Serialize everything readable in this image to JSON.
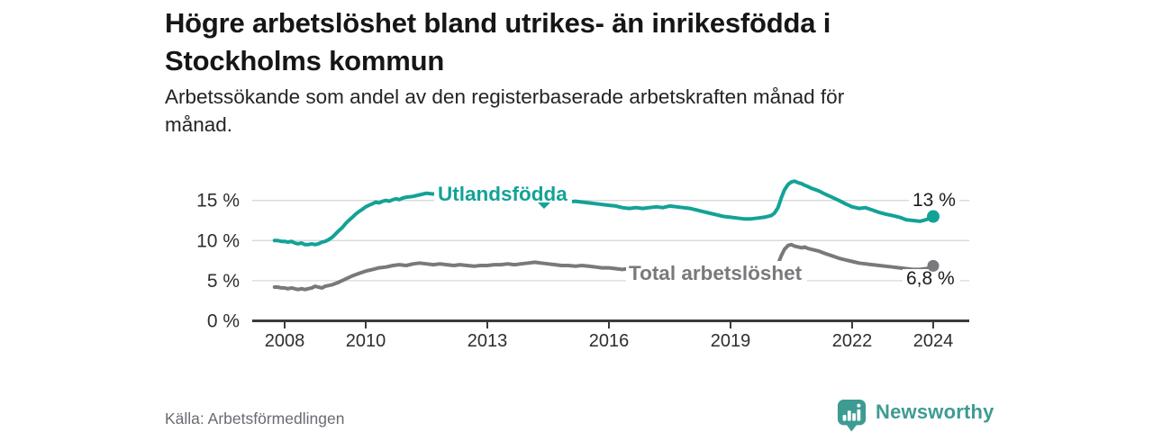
{
  "header": {
    "title_lines": [
      "Högre arbetslöshet bland utrikes- än inrikesfödda i",
      "Stockholms kommun"
    ],
    "subtitle_lines": [
      "Arbetssökande som andel av den registerbaserade arbetskraften månad för",
      "månad."
    ]
  },
  "chart_data": {
    "type": "line",
    "title": "Högre arbetslöshet bland utrikes- än inrikesfödda i Stockholms kommun",
    "subtitle": "Arbetssökande som andel av den registerbaserade arbetskraften månad för månad.",
    "unit": "%",
    "grid": "horizontal",
    "legend_position": "inline-labels",
    "xlim": [
      2007.6,
      2024.9
    ],
    "ylim": [
      0,
      18
    ],
    "x_ticks": [
      {
        "value": 2008,
        "label": "2008"
      },
      {
        "value": 2010,
        "label": "2010"
      },
      {
        "value": 2013,
        "label": "2013"
      },
      {
        "value": 2016,
        "label": "2016"
      },
      {
        "value": 2019,
        "label": "2019"
      },
      {
        "value": 2022,
        "label": "2022"
      },
      {
        "value": 2024,
        "label": "2024"
      }
    ],
    "y_ticks": [
      {
        "value": 0,
        "label": "0 %"
      },
      {
        "value": 5,
        "label": "5 %"
      },
      {
        "value": 10,
        "label": "10 %"
      },
      {
        "value": 15,
        "label": "15 %"
      }
    ],
    "series": [
      {
        "name": "Utlandsfödda",
        "color": "#13a297",
        "end_label": "13 %",
        "end_value": 13.0,
        "points": [
          [
            2007.75,
            10.0
          ],
          [
            2007.83,
            10.0
          ],
          [
            2007.92,
            9.9
          ],
          [
            2008.0,
            9.9
          ],
          [
            2008.08,
            9.8
          ],
          [
            2008.17,
            9.9
          ],
          [
            2008.25,
            9.7
          ],
          [
            2008.33,
            9.6
          ],
          [
            2008.42,
            9.7
          ],
          [
            2008.5,
            9.5
          ],
          [
            2008.58,
            9.5
          ],
          [
            2008.67,
            9.6
          ],
          [
            2008.75,
            9.5
          ],
          [
            2008.83,
            9.6
          ],
          [
            2008.92,
            9.8
          ],
          [
            2009.0,
            9.9
          ],
          [
            2009.08,
            10.1
          ],
          [
            2009.17,
            10.4
          ],
          [
            2009.25,
            10.8
          ],
          [
            2009.33,
            11.2
          ],
          [
            2009.42,
            11.6
          ],
          [
            2009.5,
            12.1
          ],
          [
            2009.58,
            12.5
          ],
          [
            2009.67,
            12.9
          ],
          [
            2009.75,
            13.3
          ],
          [
            2009.83,
            13.6
          ],
          [
            2009.92,
            13.9
          ],
          [
            2010.0,
            14.2
          ],
          [
            2010.08,
            14.4
          ],
          [
            2010.17,
            14.6
          ],
          [
            2010.25,
            14.8
          ],
          [
            2010.33,
            14.7
          ],
          [
            2010.42,
            14.9
          ],
          [
            2010.5,
            15.0
          ],
          [
            2010.58,
            14.9
          ],
          [
            2010.67,
            15.1
          ],
          [
            2010.75,
            15.2
          ],
          [
            2010.83,
            15.1
          ],
          [
            2010.92,
            15.3
          ],
          [
            2011.0,
            15.4
          ],
          [
            2011.17,
            15.5
          ],
          [
            2011.33,
            15.7
          ],
          [
            2011.5,
            15.9
          ],
          [
            2011.67,
            15.8
          ],
          [
            2011.83,
            16.0
          ],
          [
            2012.0,
            16.1
          ],
          [
            2012.17,
            15.9
          ],
          [
            2012.33,
            16.0
          ],
          [
            2012.5,
            15.8
          ],
          [
            2012.67,
            15.7
          ],
          [
            2012.83,
            15.6
          ],
          [
            2013.0,
            15.5
          ],
          [
            2013.25,
            15.4
          ],
          [
            2013.5,
            15.3
          ],
          [
            2013.75,
            15.2
          ],
          [
            2014.0,
            15.1
          ],
          [
            2014.25,
            15.0
          ],
          [
            2014.5,
            14.9
          ],
          [
            2014.75,
            14.9
          ],
          [
            2015.0,
            14.8
          ],
          [
            2015.17,
            14.9
          ],
          [
            2015.33,
            14.8
          ],
          [
            2015.5,
            14.7
          ],
          [
            2015.67,
            14.6
          ],
          [
            2015.83,
            14.5
          ],
          [
            2016.0,
            14.4
          ],
          [
            2016.17,
            14.3
          ],
          [
            2016.33,
            14.1
          ],
          [
            2016.5,
            14.0
          ],
          [
            2016.67,
            14.1
          ],
          [
            2016.83,
            14.0
          ],
          [
            2017.0,
            14.1
          ],
          [
            2017.17,
            14.2
          ],
          [
            2017.33,
            14.1
          ],
          [
            2017.5,
            14.3
          ],
          [
            2017.67,
            14.2
          ],
          [
            2017.83,
            14.1
          ],
          [
            2018.0,
            14.0
          ],
          [
            2018.17,
            13.8
          ],
          [
            2018.33,
            13.6
          ],
          [
            2018.5,
            13.4
          ],
          [
            2018.67,
            13.2
          ],
          [
            2018.83,
            13.0
          ],
          [
            2019.0,
            12.9
          ],
          [
            2019.17,
            12.8
          ],
          [
            2019.33,
            12.7
          ],
          [
            2019.5,
            12.7
          ],
          [
            2019.67,
            12.8
          ],
          [
            2019.83,
            12.9
          ],
          [
            2020.0,
            13.1
          ],
          [
            2020.08,
            13.4
          ],
          [
            2020.17,
            14.1
          ],
          [
            2020.25,
            15.3
          ],
          [
            2020.33,
            16.3
          ],
          [
            2020.42,
            17.0
          ],
          [
            2020.5,
            17.3
          ],
          [
            2020.58,
            17.4
          ],
          [
            2020.67,
            17.2
          ],
          [
            2020.75,
            17.1
          ],
          [
            2020.83,
            16.9
          ],
          [
            2020.92,
            16.7
          ],
          [
            2021.0,
            16.5
          ],
          [
            2021.17,
            16.2
          ],
          [
            2021.33,
            15.8
          ],
          [
            2021.5,
            15.4
          ],
          [
            2021.67,
            15.0
          ],
          [
            2021.83,
            14.6
          ],
          [
            2022.0,
            14.2
          ],
          [
            2022.17,
            14.0
          ],
          [
            2022.33,
            14.1
          ],
          [
            2022.5,
            13.8
          ],
          [
            2022.67,
            13.5
          ],
          [
            2022.83,
            13.3
          ],
          [
            2023.0,
            13.1
          ],
          [
            2023.17,
            12.9
          ],
          [
            2023.33,
            12.6
          ],
          [
            2023.5,
            12.5
          ],
          [
            2023.67,
            12.4
          ],
          [
            2023.83,
            12.6
          ],
          [
            2023.92,
            12.8
          ],
          [
            2024.0,
            13.0
          ]
        ]
      },
      {
        "name": "Total arbetslöshet",
        "color": "#78787d",
        "end_label": "6,8 %",
        "end_value": 6.8,
        "points": [
          [
            2007.75,
            4.2
          ],
          [
            2007.83,
            4.2
          ],
          [
            2007.92,
            4.1
          ],
          [
            2008.0,
            4.1
          ],
          [
            2008.08,
            4.0
          ],
          [
            2008.17,
            4.1
          ],
          [
            2008.25,
            4.0
          ],
          [
            2008.33,
            3.9
          ],
          [
            2008.42,
            4.0
          ],
          [
            2008.5,
            3.9
          ],
          [
            2008.58,
            4.0
          ],
          [
            2008.67,
            4.1
          ],
          [
            2008.75,
            4.3
          ],
          [
            2008.83,
            4.2
          ],
          [
            2008.92,
            4.1
          ],
          [
            2009.0,
            4.3
          ],
          [
            2009.17,
            4.5
          ],
          [
            2009.33,
            4.8
          ],
          [
            2009.5,
            5.2
          ],
          [
            2009.67,
            5.6
          ],
          [
            2009.83,
            5.9
          ],
          [
            2010.0,
            6.2
          ],
          [
            2010.17,
            6.4
          ],
          [
            2010.33,
            6.6
          ],
          [
            2010.5,
            6.7
          ],
          [
            2010.67,
            6.9
          ],
          [
            2010.83,
            7.0
          ],
          [
            2011.0,
            6.9
          ],
          [
            2011.17,
            7.1
          ],
          [
            2011.33,
            7.2
          ],
          [
            2011.5,
            7.1
          ],
          [
            2011.67,
            7.0
          ],
          [
            2011.83,
            7.1
          ],
          [
            2012.0,
            7.0
          ],
          [
            2012.17,
            6.9
          ],
          [
            2012.33,
            7.0
          ],
          [
            2012.5,
            6.9
          ],
          [
            2012.67,
            6.8
          ],
          [
            2012.83,
            6.9
          ],
          [
            2013.0,
            6.9
          ],
          [
            2013.17,
            7.0
          ],
          [
            2013.33,
            7.0
          ],
          [
            2013.5,
            7.1
          ],
          [
            2013.67,
            7.0
          ],
          [
            2013.83,
            7.1
          ],
          [
            2014.0,
            7.2
          ],
          [
            2014.17,
            7.3
          ],
          [
            2014.33,
            7.2
          ],
          [
            2014.5,
            7.1
          ],
          [
            2014.67,
            7.0
          ],
          [
            2014.83,
            6.9
          ],
          [
            2015.0,
            6.9
          ],
          [
            2015.17,
            6.8
          ],
          [
            2015.33,
            6.9
          ],
          [
            2015.5,
            6.8
          ],
          [
            2015.67,
            6.7
          ],
          [
            2015.83,
            6.6
          ],
          [
            2016.0,
            6.6
          ],
          [
            2016.17,
            6.5
          ],
          [
            2016.33,
            6.4
          ],
          [
            2016.5,
            6.5
          ],
          [
            2016.67,
            6.4
          ],
          [
            2016.83,
            6.3
          ],
          [
            2017.0,
            6.3
          ],
          [
            2017.25,
            6.2
          ],
          [
            2017.5,
            6.2
          ],
          [
            2017.75,
            6.1
          ],
          [
            2018.0,
            6.1
          ],
          [
            2018.25,
            6.0
          ],
          [
            2018.5,
            6.0
          ],
          [
            2018.75,
            5.9
          ],
          [
            2019.0,
            5.9
          ],
          [
            2019.25,
            5.9
          ],
          [
            2019.5,
            5.9
          ],
          [
            2019.75,
            6.0
          ],
          [
            2020.0,
            6.2
          ],
          [
            2020.08,
            6.5
          ],
          [
            2020.17,
            7.1
          ],
          [
            2020.25,
            8.1
          ],
          [
            2020.33,
            8.9
          ],
          [
            2020.42,
            9.4
          ],
          [
            2020.5,
            9.5
          ],
          [
            2020.58,
            9.3
          ],
          [
            2020.67,
            9.2
          ],
          [
            2020.75,
            9.1
          ],
          [
            2020.83,
            9.2
          ],
          [
            2020.92,
            9.0
          ],
          [
            2021.0,
            8.9
          ],
          [
            2021.17,
            8.7
          ],
          [
            2021.33,
            8.4
          ],
          [
            2021.5,
            8.1
          ],
          [
            2021.67,
            7.8
          ],
          [
            2021.83,
            7.6
          ],
          [
            2022.0,
            7.4
          ],
          [
            2022.17,
            7.2
          ],
          [
            2022.33,
            7.1
          ],
          [
            2022.5,
            7.0
          ],
          [
            2022.67,
            6.9
          ],
          [
            2022.83,
            6.8
          ],
          [
            2023.0,
            6.7
          ],
          [
            2023.17,
            6.6
          ],
          [
            2023.33,
            6.5
          ],
          [
            2023.5,
            6.4
          ],
          [
            2023.67,
            6.4
          ],
          [
            2023.83,
            6.5
          ],
          [
            2023.92,
            6.6
          ],
          [
            2024.0,
            6.85
          ]
        ]
      }
    ]
  },
  "footer": {
    "source": "Källa: Arbetsförmedlingen",
    "brand": "Newsworthy"
  },
  "colors": {
    "accent": "#13a297",
    "secondary": "#78787d",
    "brand": "#3e9b93",
    "axis": "#3b3b3b",
    "grid": "#d8d8d8",
    "text": "#161616"
  }
}
